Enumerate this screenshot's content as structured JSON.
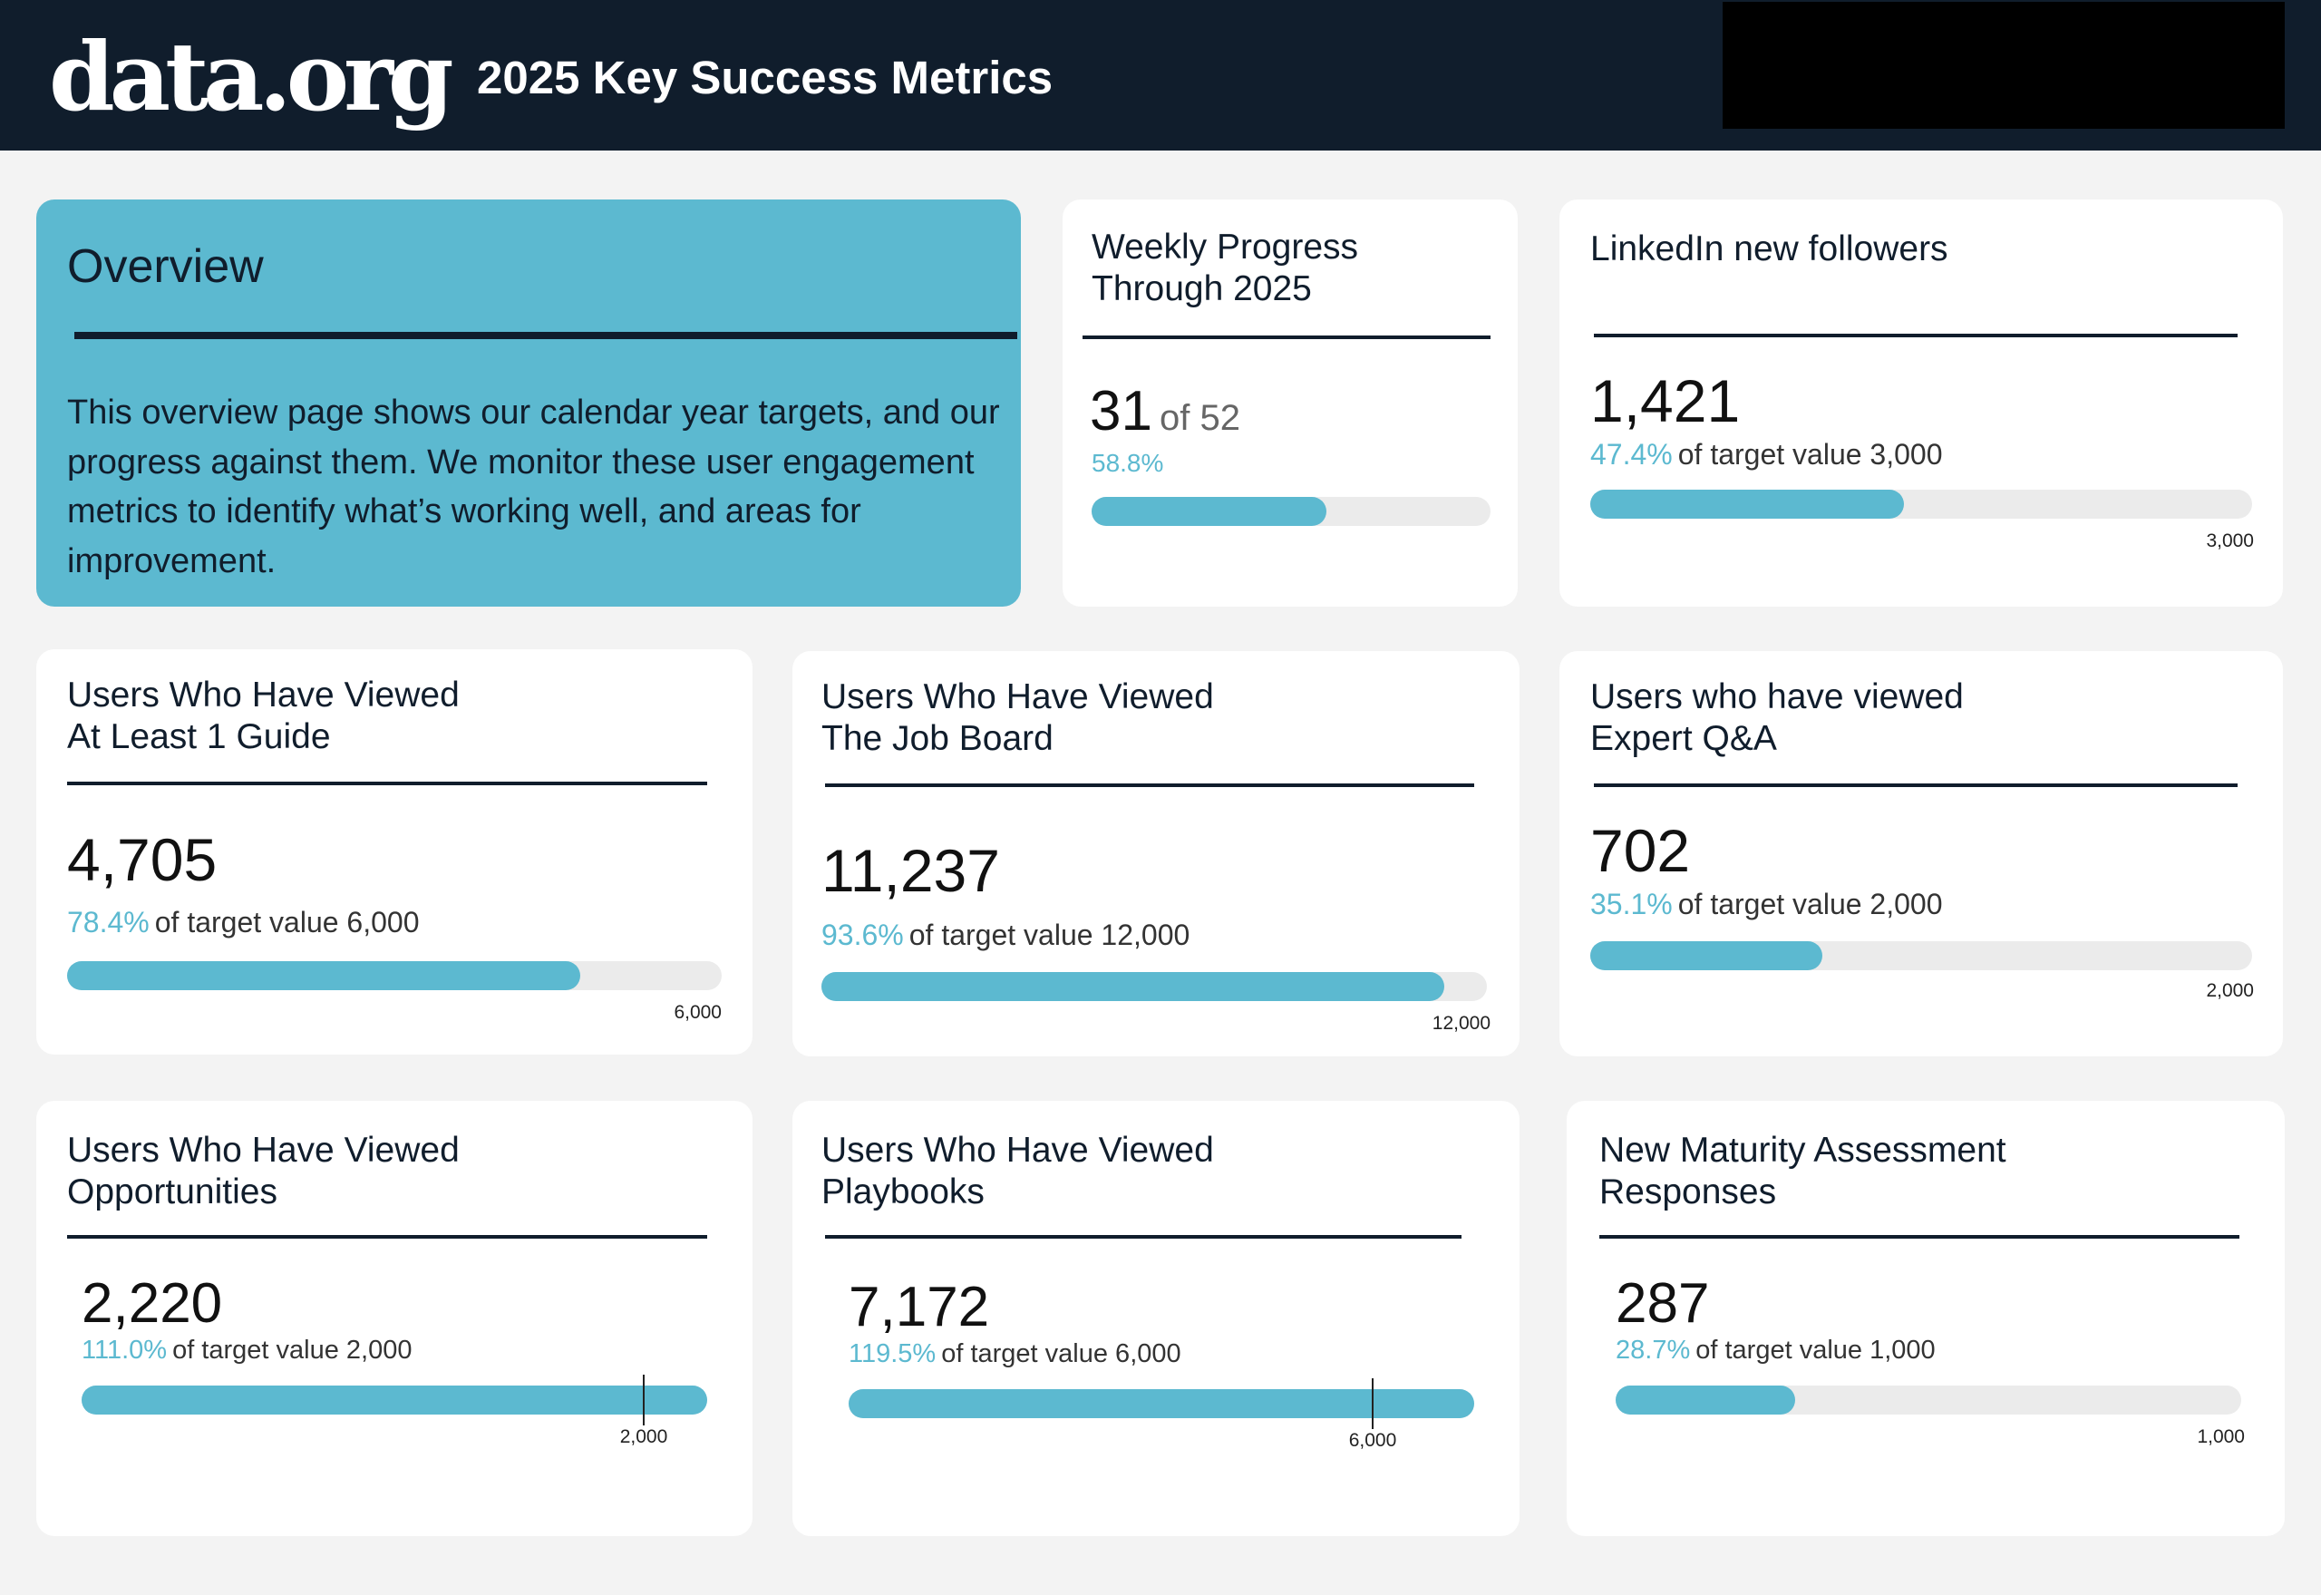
{
  "header": {
    "logo_text": "data.org",
    "title": "2025 Key Success Metrics"
  },
  "colors": {
    "header_bg": "#101d2c",
    "accent": "#5cb9d0",
    "track": "#ebebeb",
    "page_bg": "#f3f3f3"
  },
  "overview": {
    "title": "Overview",
    "text": "This overview page shows our calendar year targets, and our progress against them. We monitor these user engagement metrics to identify what’s working well, and areas for improvement."
  },
  "weekly": {
    "title_line1": "Weekly Progress",
    "title_line2": "Through 2025",
    "value": "31",
    "of_text": "of 52",
    "pct": "58.8%",
    "progress": 0.588
  },
  "linkedin": {
    "title_line1": "LinkedIn new followers",
    "value": "1,421",
    "pct": "47.4%",
    "target_text": "of target value 3,000",
    "target_label": "3,000",
    "progress": 0.474
  },
  "guide": {
    "title_line1": "Users Who Have Viewed",
    "title_line2": "At Least 1 Guide",
    "value": "4,705",
    "pct": "78.4%",
    "target_text": "of target value 6,000",
    "target_label": "6,000",
    "progress": 0.784
  },
  "jobboard": {
    "title_line1": "Users Who Have Viewed",
    "title_line2": "The Job Board",
    "value": "11,237",
    "pct": "93.6%",
    "target_text": "of target value 12,000",
    "target_label": "12,000",
    "progress": 0.936
  },
  "expertqa": {
    "title_line1": "Users who have viewed",
    "title_line2": "Expert Q&A",
    "value": "702",
    "pct": "35.1%",
    "target_text": "of target value 2,000",
    "target_label": "2,000",
    "progress": 0.351
  },
  "opportunities": {
    "title_line1": "Users Who Have Viewed",
    "title_line2": "Opportunities",
    "value": "2,220",
    "pct": "111.0%",
    "target_text": "of target value 2,000",
    "target_label": "2,000",
    "progress": 1.11
  },
  "playbooks": {
    "title_line1": "Users Who Have Viewed",
    "title_line2": "Playbooks",
    "value": "7,172",
    "pct": "119.5%",
    "target_text": "of target value 6,000",
    "target_label": "6,000",
    "progress": 1.195
  },
  "maturity": {
    "title_line1": "New Maturity Assessment",
    "title_line2": "Responses",
    "value": "287",
    "pct": "28.7%",
    "target_text": "of target value 1,000",
    "target_label": "1,000",
    "progress": 0.287
  }
}
